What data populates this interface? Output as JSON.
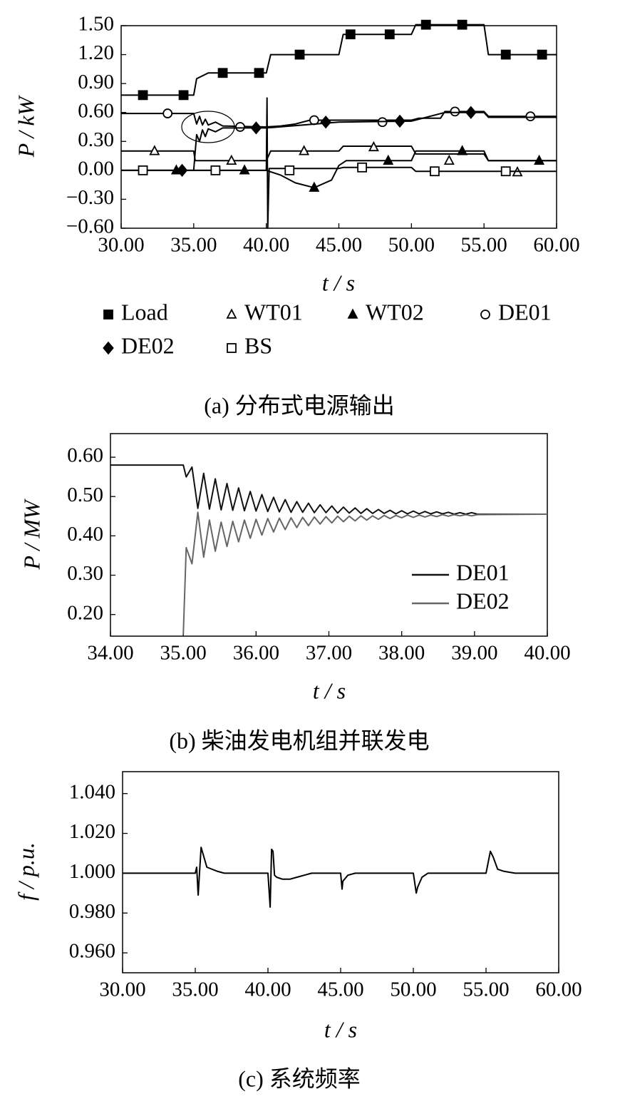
{
  "chart_data": [
    {
      "type": "line",
      "x_label": "t / s",
      "y_label": "P / kW",
      "caption": "(a)  分布式电源输出",
      "xlim": [
        30,
        60
      ],
      "ylim": [
        -0.6,
        1.5
      ],
      "xticks": [
        {
          "value": 30,
          "label": "30.00"
        },
        {
          "value": 35,
          "label": "35.00"
        },
        {
          "value": 40,
          "label": "40.00"
        },
        {
          "value": 45,
          "label": "45.00"
        },
        {
          "value": 50,
          "label": "50.00"
        },
        {
          "value": 55,
          "label": "55.00"
        },
        {
          "value": 60,
          "label": "60.00"
        }
      ],
      "yticks": [
        {
          "value": -0.6,
          "label": "−0.60"
        },
        {
          "value": -0.3,
          "label": "−0.30"
        },
        {
          "value": 0,
          "label": "0.00"
        },
        {
          "value": 0.3,
          "label": "0.30"
        },
        {
          "value": 0.6,
          "label": "0.60"
        },
        {
          "value": 0.9,
          "label": "0.90"
        },
        {
          "value": 1.2,
          "label": "1.20"
        },
        {
          "value": 1.5,
          "label": "1.50"
        }
      ],
      "legend": "bottom",
      "series": [
        {
          "name": "Load",
          "color": "#000000",
          "marker": "square",
          "x": [
            30,
            35,
            35.2,
            36,
            40,
            40.3,
            45,
            45.3,
            50,
            50.3,
            55,
            55.3,
            60
          ],
          "values": [
            0.78,
            0.78,
            0.95,
            1.01,
            1.01,
            1.2,
            1.2,
            1.41,
            1.41,
            1.51,
            1.51,
            1.2,
            1.2
          ],
          "marker_x": [
            31.5,
            34.3,
            37,
            39.5,
            42.3,
            45.8,
            48.5,
            51,
            53.5,
            56.5,
            59
          ],
          "marker_values": [
            0.78,
            0.78,
            1.01,
            1.01,
            1.2,
            1.41,
            1.41,
            1.51,
            1.51,
            1.2,
            1.2
          ]
        },
        {
          "name": "WT01",
          "color": "#000000",
          "marker": "triangle-open",
          "x": [
            30,
            35,
            35.1,
            40,
            40.3,
            45,
            45.3,
            50,
            50.3,
            55,
            55.3,
            60
          ],
          "values": [
            0.2,
            0.2,
            0.1,
            0.1,
            0.2,
            0.2,
            0.25,
            0.25,
            0.17,
            0.17,
            0.1,
            0.1
          ],
          "marker_x": [
            32.3,
            37.6,
            42.6,
            47.4,
            52.6,
            57.3
          ],
          "marker_values": [
            0.2,
            0.1,
            0.2,
            0.24,
            0.1,
            -0.02
          ]
        },
        {
          "name": "WT02",
          "color": "#000000",
          "marker": "triangle",
          "x": [
            30,
            40,
            41,
            42,
            43.3,
            44.5,
            45,
            45.5,
            50,
            50.3,
            55,
            55.3,
            60
          ],
          "values": [
            0,
            0,
            -0.05,
            -0.13,
            -0.18,
            -0.1,
            0.05,
            0.1,
            0.1,
            0.2,
            0.2,
            0.1,
            0.1
          ],
          "marker_x": [
            33.8,
            38.5,
            43.3,
            48.4,
            53.5,
            58.8
          ],
          "marker_values": [
            0,
            0,
            -0.18,
            0.1,
            0.2,
            0.1
          ]
        },
        {
          "name": "DE01",
          "color": "#000000",
          "marker": "circle-open",
          "x": [
            30,
            35,
            35.2,
            35.4,
            35.6,
            35.8,
            36,
            36.5,
            37,
            40,
            41,
            42,
            43,
            45,
            50,
            50.5,
            52,
            52.3,
            55,
            55.3,
            60
          ],
          "values": [
            0.59,
            0.59,
            0.48,
            0.56,
            0.47,
            0.53,
            0.47,
            0.5,
            0.46,
            0.45,
            0.46,
            0.48,
            0.52,
            0.52,
            0.52,
            0.54,
            0.54,
            0.61,
            0.61,
            0.56,
            0.56
          ],
          "marker_x": [
            33.2,
            38.2,
            43.3,
            48,
            53,
            58.2
          ],
          "marker_values": [
            0.59,
            0.45,
            0.52,
            0.5,
            0.61,
            0.56
          ]
        },
        {
          "name": "DE02",
          "color": "#000000",
          "marker": "diamond",
          "x": [
            30,
            35,
            35.2,
            35.4,
            35.6,
            35.8,
            36,
            36.5,
            37,
            40,
            45,
            50,
            52.3,
            55,
            55.3,
            60
          ],
          "values": [
            0,
            0,
            0.37,
            0.3,
            0.42,
            0.35,
            0.43,
            0.4,
            0.44,
            0.44,
            0.5,
            0.51,
            0.6,
            0.6,
            0.55,
            0.55
          ],
          "marker_x": [
            34.2,
            39.3,
            44.1,
            49.2,
            54.1
          ],
          "marker_values": [
            0,
            0.44,
            0.5,
            0.51,
            0.6
          ]
        },
        {
          "name": "BS",
          "color": "#000000",
          "marker": "square-open",
          "x": [
            30,
            40,
            40.05,
            40.1,
            40.2,
            45,
            45.3,
            50,
            50.3,
            55,
            55.3,
            60
          ],
          "values": [
            0,
            0,
            0.75,
            -0.6,
            0.02,
            0.02,
            0.03,
            0.03,
            -0.01,
            -0.01,
            -0.01,
            -0.01
          ],
          "marker_x": [
            31.5,
            36.5,
            41.6,
            46.6,
            51.6,
            56.5
          ],
          "marker_values": [
            0,
            0,
            0,
            0.03,
            -0.01,
            -0.01
          ]
        }
      ]
    },
    {
      "type": "line",
      "x_label": "t / s",
      "y_label": "P / MW",
      "caption": "(b)  柴油发电机组并联发电",
      "xlim": [
        34,
        40
      ],
      "ylim": [
        0.145,
        0.66
      ],
      "xticks": [
        {
          "value": 34,
          "label": "34.00"
        },
        {
          "value": 35,
          "label": "35.00"
        },
        {
          "value": 36,
          "label": "36.00"
        },
        {
          "value": 37,
          "label": "37.00"
        },
        {
          "value": 38,
          "label": "38.00"
        },
        {
          "value": 39,
          "label": "39.00"
        },
        {
          "value": 40,
          "label": "40.00"
        }
      ],
      "yticks": [
        {
          "value": 0.2,
          "label": "0.20"
        },
        {
          "value": 0.3,
          "label": "0.30"
        },
        {
          "value": 0.4,
          "label": "0.40"
        },
        {
          "value": 0.5,
          "label": "0.50"
        },
        {
          "value": 0.6,
          "label": "0.60"
        }
      ],
      "legend": "lower right",
      "x": [
        34,
        35,
        35.04,
        35.12,
        35.2,
        35.28,
        35.36,
        35.44,
        35.52,
        35.6,
        35.68,
        35.76,
        35.84,
        35.92,
        36,
        36.08,
        36.16,
        36.24,
        36.32,
        36.4,
        36.48,
        36.56,
        36.64,
        36.72,
        36.8,
        36.88,
        36.96,
        37.04,
        37.12,
        37.2,
        37.28,
        37.36,
        37.44,
        37.52,
        37.6,
        37.68,
        37.76,
        37.84,
        37.92,
        38,
        38.08,
        38.16,
        38.24,
        38.32,
        38.4,
        38.48,
        38.56,
        38.64,
        38.72,
        38.8,
        38.88,
        38.96,
        39.04,
        40
      ],
      "series": [
        {
          "name": "DE01",
          "color": "#111111",
          "values": [
            0.58,
            0.58,
            0.55,
            0.575,
            0.47,
            0.559,
            0.468,
            0.545,
            0.466,
            0.533,
            0.465,
            0.522,
            0.464,
            0.513,
            0.463,
            0.505,
            0.462,
            0.498,
            0.461,
            0.492,
            0.46,
            0.487,
            0.46,
            0.483,
            0.459,
            0.479,
            0.459,
            0.476,
            0.458,
            0.473,
            0.458,
            0.471,
            0.457,
            0.469,
            0.457,
            0.467,
            0.457,
            0.465,
            0.456,
            0.464,
            0.456,
            0.463,
            0.456,
            0.462,
            0.456,
            0.461,
            0.456,
            0.46,
            0.455,
            0.459,
            0.455,
            0.459,
            0.455,
            0.455
          ]
        },
        {
          "name": "DE02",
          "color": "#666666",
          "values": [
            null,
            0.15,
            0.37,
            0.329,
            0.46,
            0.346,
            0.44,
            0.361,
            0.435,
            0.373,
            0.437,
            0.385,
            0.44,
            0.394,
            0.442,
            0.402,
            0.444,
            0.41,
            0.445,
            0.416,
            0.446,
            0.421,
            0.447,
            0.426,
            0.448,
            0.43,
            0.449,
            0.433,
            0.45,
            0.436,
            0.45,
            0.438,
            0.451,
            0.44,
            0.451,
            0.442,
            0.452,
            0.444,
            0.452,
            0.446,
            0.453,
            0.447,
            0.453,
            0.448,
            0.453,
            0.449,
            0.454,
            0.45,
            0.454,
            0.451,
            0.454,
            0.451,
            0.454,
            0.455
          ]
        }
      ]
    },
    {
      "type": "line",
      "x_label": "t / s",
      "y_label": "f / p.u.",
      "caption": "(c)  系统频率",
      "xlim": [
        30,
        60
      ],
      "ylim": [
        0.95,
        1.051
      ],
      "xticks": [
        {
          "value": 30,
          "label": "30.00"
        },
        {
          "value": 35,
          "label": "35.00"
        },
        {
          "value": 40,
          "label": "40.00"
        },
        {
          "value": 45,
          "label": "45.00"
        },
        {
          "value": 50,
          "label": "50.00"
        },
        {
          "value": 55,
          "label": "55.00"
        },
        {
          "value": 60,
          "label": "60.00"
        }
      ],
      "yticks": [
        {
          "value": 0.96,
          "label": "0.960"
        },
        {
          "value": 0.98,
          "label": "0.980"
        },
        {
          "value": 1,
          "label": "1.000"
        },
        {
          "value": 1.02,
          "label": "1.020"
        },
        {
          "value": 1.04,
          "label": "1.040"
        }
      ],
      "color": "#000000",
      "x": [
        30,
        35,
        35.1,
        35.2,
        35.3,
        35.4,
        35.8,
        36.5,
        37,
        40,
        40.15,
        40.25,
        40.35,
        40.45,
        40.6,
        41,
        41.5,
        42,
        42.5,
        43,
        45,
        45.1,
        45.15,
        45.5,
        46,
        50,
        50.2,
        50.3,
        50.6,
        51,
        55,
        55.3,
        55.5,
        55.8,
        56.2,
        57,
        60
      ],
      "values": [
        1,
        1,
        1.003,
        0.989,
        1.001,
        1.013,
        1.003,
        1.001,
        1,
        1,
        0.983,
        1.012,
        1.011,
        0.999,
        0.998,
        0.997,
        0.997,
        0.998,
        0.999,
        1,
        1,
        0.992,
        0.996,
        0.999,
        1,
        1,
        0.99,
        0.993,
        0.998,
        1,
        1,
        1.011,
        1.008,
        1.002,
        1.001,
        1,
        1
      ]
    }
  ]
}
